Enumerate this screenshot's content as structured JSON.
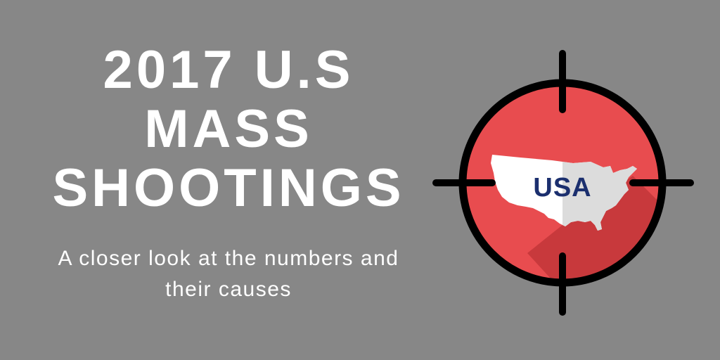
{
  "title": {
    "line1": "2017 U.S",
    "line2": "MASS",
    "line3": "SHOOTINGS"
  },
  "subtitle": {
    "line1": "A closer look at the numbers and",
    "line2": "their causes"
  },
  "target_graphic": {
    "map_label": "USA",
    "colors": {
      "background": "#878787",
      "ring": "#000000",
      "target_fill": "#e84c4f",
      "shadow": "#c8393c",
      "map": "#ffffff",
      "map_shadow_half": "#dcdcdc",
      "label": "#1b2f6e"
    },
    "icons": [
      "crosshair-icon",
      "usa-map-icon"
    ]
  }
}
